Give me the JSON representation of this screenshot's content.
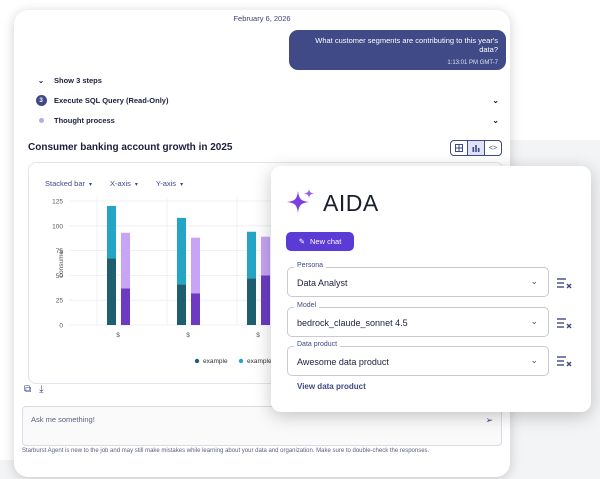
{
  "header": {
    "date": "February 6, 2026"
  },
  "user_message": {
    "text": "What customer segments are contributing to this year's data?",
    "time": "1:13:01 PM GMT-7"
  },
  "steps": [
    {
      "label": "Show 3 steps"
    },
    {
      "number": "3",
      "label": "Execute SQL Query (Read-Only)"
    },
    {
      "label": "Thought process"
    }
  ],
  "chart_section": {
    "title": "Consumer banking account growth in 2025",
    "controls": [
      "Stacked bar",
      "X-axis",
      "Y-axis"
    ]
  },
  "chart_data": {
    "type": "bar",
    "stacked": true,
    "categories": [
      "$",
      "$",
      "$"
    ],
    "ylabel": "consumer",
    "ylim": [
      0,
      125
    ],
    "yticks": [
      0,
      25,
      50,
      75,
      100,
      125
    ],
    "legend": [
      "example",
      "example"
    ],
    "series": [
      {
        "name": "example",
        "color": "#1d5e6f",
        "values": [
          67,
          41,
          47
        ]
      },
      {
        "name": "example",
        "color": "#25a5c6",
        "values": [
          53,
          67,
          47
        ]
      }
    ],
    "series_b": [
      {
        "color": "#6c3bc1",
        "values": [
          37,
          32,
          50
        ]
      },
      {
        "color": "#c7a5f4",
        "values": [
          56,
          56,
          39
        ]
      }
    ]
  },
  "composer": {
    "placeholder": "Ask me something!",
    "disclaimer": "Starburst Agent is new to the job and may still make mistakes while learning about your data and organization. Make sure to double-check the responses."
  },
  "aida": {
    "title": "AIDA",
    "new_chat": "New chat",
    "fields": [
      {
        "label": "Persona",
        "value": "Data Analyst"
      },
      {
        "label": "Model",
        "value": "bedrock_claude_sonnet 4.5"
      },
      {
        "label": "Data product",
        "value": "Awesome data product"
      }
    ],
    "view_link": "View data product"
  },
  "colors": {
    "accent": "#3f4a86",
    "brand_purple": "#5b3bd6"
  }
}
